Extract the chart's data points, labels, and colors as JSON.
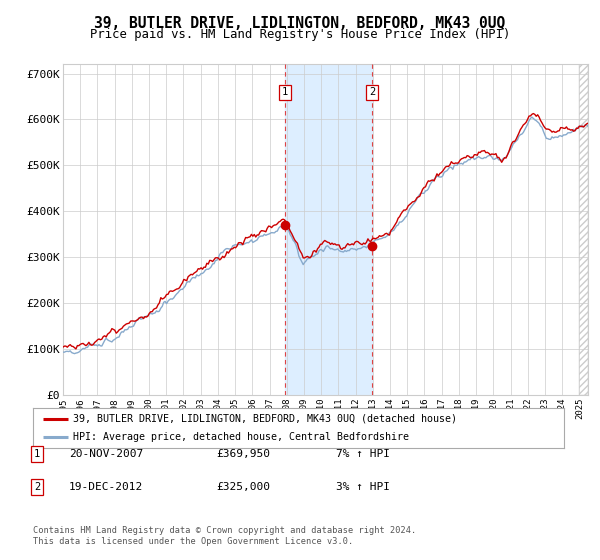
{
  "title": "39, BUTLER DRIVE, LIDLINGTON, BEDFORD, MK43 0UQ",
  "subtitle": "Price paid vs. HM Land Registry's House Price Index (HPI)",
  "ylim": [
    0,
    720000
  ],
  "xlim_start": 1995.0,
  "xlim_end": 2025.5,
  "yticks": [
    0,
    100000,
    200000,
    300000,
    400000,
    500000,
    600000,
    700000
  ],
  "ytick_labels": [
    "£0",
    "£100K",
    "£200K",
    "£300K",
    "£400K",
    "£500K",
    "£600K",
    "£700K"
  ],
  "xticks": [
    1995,
    1996,
    1997,
    1998,
    1999,
    2000,
    2001,
    2002,
    2003,
    2004,
    2005,
    2006,
    2007,
    2008,
    2009,
    2010,
    2011,
    2012,
    2013,
    2014,
    2015,
    2016,
    2017,
    2018,
    2019,
    2020,
    2021,
    2022,
    2023,
    2024,
    2025
  ],
  "sale1_x": 2007.896,
  "sale1_y": 369950,
  "sale2_x": 2012.963,
  "sale2_y": 325000,
  "shade_x1": 2007.896,
  "shade_x2": 2012.963,
  "line_color_red": "#cc0000",
  "line_color_blue": "#88aacc",
  "shade_color": "#ddeeff",
  "marker_color": "#cc0000",
  "grid_color": "#cccccc",
  "bg_color": "#ffffff",
  "legend_label_red": "39, BUTLER DRIVE, LIDLINGTON, BEDFORD, MK43 0UQ (detached house)",
  "legend_label_blue": "HPI: Average price, detached house, Central Bedfordshire",
  "table_row1": [
    "1",
    "20-NOV-2007",
    "£369,950",
    "7% ↑ HPI"
  ],
  "table_row2": [
    "2",
    "19-DEC-2012",
    "£325,000",
    "3% ↑ HPI"
  ],
  "footer": "Contains HM Land Registry data © Crown copyright and database right 2024.\nThis data is licensed under the Open Government Licence v3.0."
}
